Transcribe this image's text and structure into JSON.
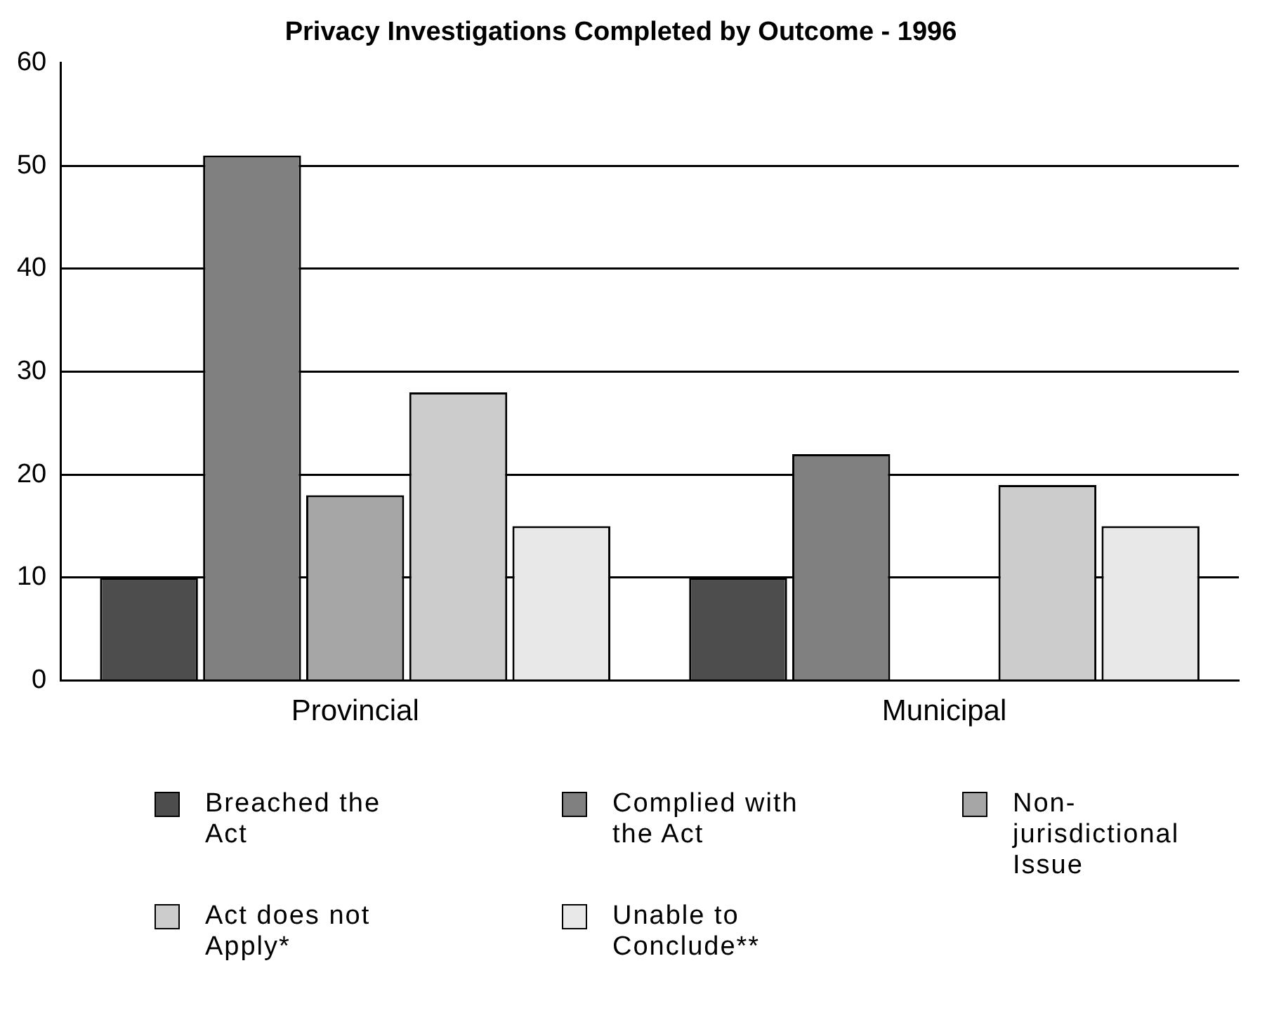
{
  "chart_data": {
    "type": "bar",
    "title": "Privacy Investigations Completed by Outcome - 1996",
    "categories": [
      "Provincial",
      "Municipal"
    ],
    "series": [
      {
        "name": "Breached the Act",
        "color": "#4d4d4d",
        "values": [
          10,
          10
        ]
      },
      {
        "name": "Complied with the Act",
        "color": "#808080",
        "values": [
          51,
          22
        ]
      },
      {
        "name": "Non-jurisdictional Issue",
        "color": "#a6a6a6",
        "values": [
          18,
          0
        ]
      },
      {
        "name": "Act does not Apply*",
        "color": "#cccccc",
        "values": [
          28,
          19
        ]
      },
      {
        "name": "Unable to Conclude**",
        "color": "#e8e8e8",
        "values": [
          15,
          15
        ]
      }
    ],
    "ylim": [
      0,
      60
    ],
    "yticks": [
      0,
      10,
      20,
      30,
      40,
      50,
      60
    ],
    "grid": "y",
    "legend": "bottom"
  }
}
